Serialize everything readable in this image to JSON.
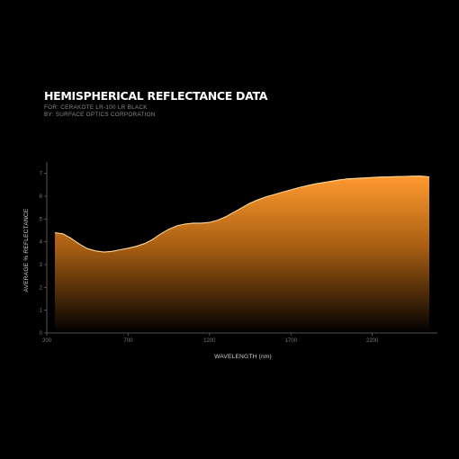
{
  "header": {
    "title": "HEMISPHERICAL REFLECTANCE DATA",
    "subtitle_for": "FOR: CERAKOTE LR-100 LR BLACK",
    "subtitle_by": "BY: SURFACE OPTICS CORPORATION"
  },
  "colors": {
    "background": "#000000",
    "fill_top": "#ff9a2e",
    "fill_bottom": "#000000",
    "line": "#ffd79a"
  },
  "chart_data": {
    "type": "area",
    "title": "HEMISPHERICAL REFLECTANCE DATA",
    "xlabel": "WAVELENGTH (nm)",
    "ylabel": "AVERAGE % REFLECTANCE",
    "xlim": [
      200,
      2600
    ],
    "ylim": [
      0,
      7.5
    ],
    "x_ticks": [
      200,
      700,
      1200,
      1700,
      2200
    ],
    "y_ticks": [
      0,
      1,
      2,
      3,
      4,
      5,
      6,
      7
    ],
    "grid": false,
    "legend": "none",
    "x": [
      250,
      300,
      350,
      400,
      450,
      500,
      550,
      600,
      650,
      700,
      750,
      800,
      850,
      900,
      950,
      1000,
      1050,
      1100,
      1150,
      1200,
      1250,
      1300,
      1350,
      1400,
      1450,
      1500,
      1550,
      1600,
      1650,
      1700,
      1750,
      1800,
      1850,
      1900,
      1950,
      2000,
      2050,
      2100,
      2150,
      2200,
      2250,
      2300,
      2350,
      2400,
      2450,
      2500,
      2550
    ],
    "values": [
      4.4,
      4.35,
      4.15,
      3.9,
      3.7,
      3.6,
      3.55,
      3.58,
      3.65,
      3.72,
      3.8,
      3.92,
      4.1,
      4.35,
      4.55,
      4.7,
      4.78,
      4.82,
      4.82,
      4.85,
      4.95,
      5.1,
      5.3,
      5.5,
      5.7,
      5.85,
      5.98,
      6.08,
      6.18,
      6.28,
      6.38,
      6.46,
      6.54,
      6.6,
      6.66,
      6.72,
      6.76,
      6.78,
      6.8,
      6.82,
      6.84,
      6.85,
      6.86,
      6.87,
      6.88,
      6.88,
      6.85
    ]
  }
}
